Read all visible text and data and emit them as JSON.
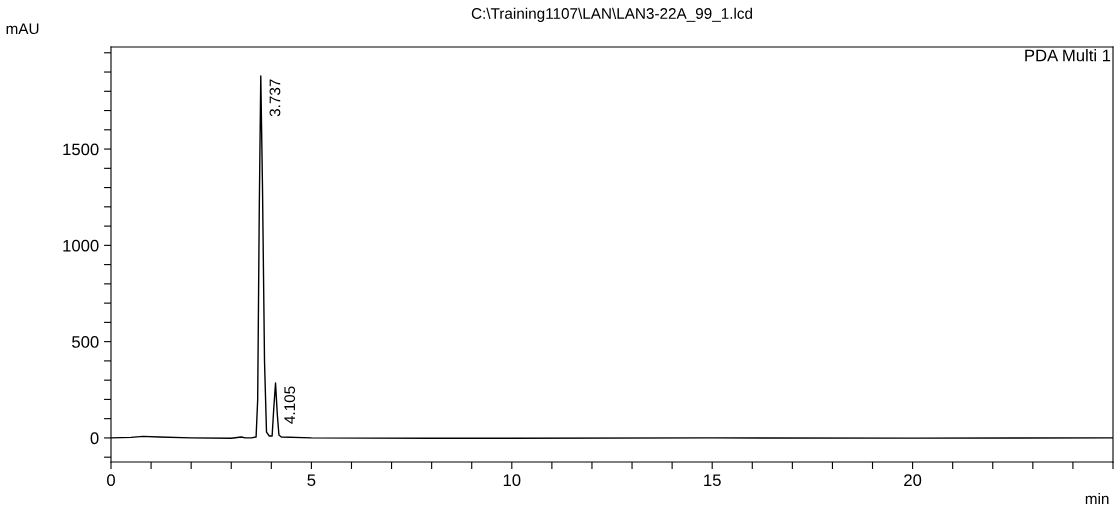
{
  "chart_data": {
    "type": "line",
    "title": "C:\\Training1107\\LAN\\LAN3-22A_99_1.lcd",
    "xlabel": "min",
    "ylabel": "mAU",
    "x": [
      0,
      0.5,
      0.8,
      1.2,
      2,
      3,
      3.25,
      3.35,
      3.5,
      3.62,
      3.66,
      3.7,
      3.737,
      3.78,
      3.83,
      3.88,
      3.95,
      4.02,
      4.06,
      4.105,
      4.15,
      4.19,
      4.25,
      5,
      8,
      15,
      20,
      25
    ],
    "series": [
      {
        "name": "PDA Multi 1",
        "color": "#000000",
        "values": [
          0,
          3,
          8,
          5,
          0,
          -2,
          5,
          0,
          0,
          5,
          200,
          1200,
          1880,
          1300,
          400,
          30,
          10,
          10,
          150,
          285,
          120,
          15,
          5,
          0,
          -2,
          0,
          -1,
          0
        ]
      }
    ],
    "annotations": [
      {
        "text": "3.737",
        "x": 3.737,
        "y": 1880
      },
      {
        "text": "4.105",
        "x": 4.105,
        "y": 285
      }
    ],
    "xlim": [
      0,
      25
    ],
    "ylim": [
      -125,
      2030
    ],
    "xticks": [
      0,
      {
        "value": 1,
        "label": null
      },
      {
        "value": 2,
        "label": null
      },
      {
        "value": 3,
        "label": null
      },
      {
        "value": 4,
        "label": null
      },
      5,
      {
        "value": 6,
        "label": null
      },
      {
        "value": 7,
        "label": null
      },
      {
        "value": 8,
        "label": null
      },
      {
        "value": 9,
        "label": null
      },
      10,
      {
        "value": 11,
        "label": null
      },
      {
        "value": 12,
        "label": null
      },
      {
        "value": 13,
        "label": null
      },
      {
        "value": 14,
        "label": null
      },
      15,
      {
        "value": 16,
        "label": null
      },
      {
        "value": 17,
        "label": null
      },
      {
        "value": 18,
        "label": null
      },
      {
        "value": 19,
        "label": null
      },
      20,
      {
        "value": 21,
        "label": null
      },
      {
        "value": 22,
        "label": null
      },
      {
        "value": 23,
        "label": null
      },
      {
        "value": 24,
        "label": null
      },
      {
        "value": 25,
        "label": null
      }
    ],
    "yticks": [
      {
        "value": -100,
        "label": null
      },
      0,
      {
        "value": 100,
        "label": null
      },
      {
        "value": 200,
        "label": null
      },
      {
        "value": 300,
        "label": null
      },
      {
        "value": 400,
        "label": null
      },
      500,
      {
        "value": 600,
        "label": null
      },
      {
        "value": 700,
        "label": null
      },
      {
        "value": 800,
        "label": null
      },
      {
        "value": 900,
        "label": null
      },
      1000,
      {
        "value": 1100,
        "label": null
      },
      {
        "value": 1200,
        "label": null
      },
      {
        "value": 1300,
        "label": null
      },
      {
        "value": 1400,
        "label": null
      },
      1500,
      {
        "value": 1600,
        "label": null
      },
      {
        "value": 1700,
        "label": null
      },
      {
        "value": 1800,
        "label": null
      },
      {
        "value": 1900,
        "label": null
      },
      {
        "value": 2000,
        "label": null
      }
    ],
    "grid": false,
    "legend": "top right"
  }
}
